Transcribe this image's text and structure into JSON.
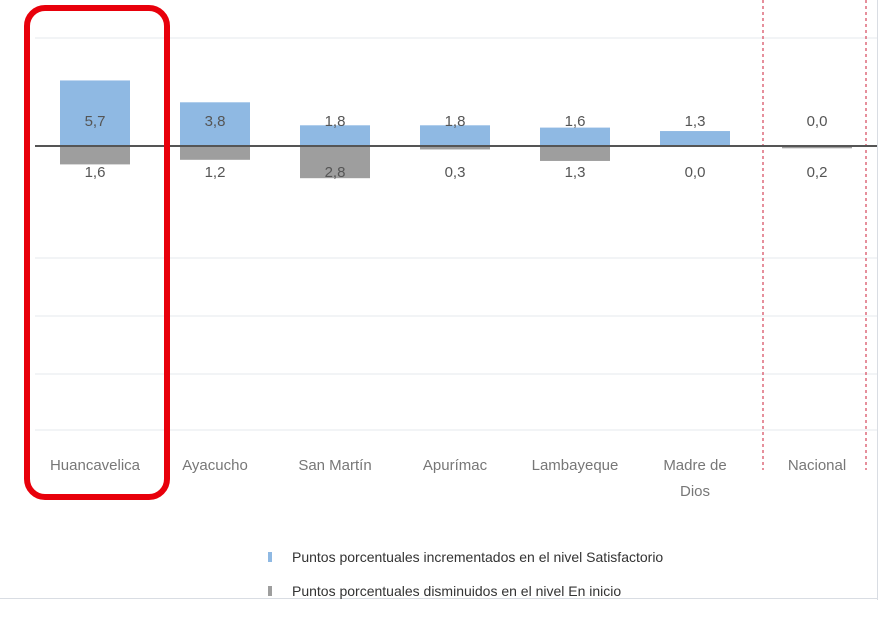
{
  "chart_data": {
    "type": "bar",
    "categories": [
      "Huancavelica",
      "Ayacucho",
      "San Martín",
      "Apurímac",
      "Lambayeque",
      "Madre de Dios",
      "Nacional"
    ],
    "series": [
      {
        "name": "Puntos porcentuales incrementados en el nivel Satisfactorio",
        "values": [
          5.7,
          3.8,
          1.8,
          1.8,
          1.6,
          1.3,
          0.0
        ],
        "labels": [
          "5,7",
          "3,8",
          "1,8",
          "1,8",
          "1,6",
          "1,3",
          "0,0"
        ],
        "color": "#8fb9e3",
        "direction": "up"
      },
      {
        "name": "Puntos porcentuales disminuidos en el nivel En inicio",
        "values": [
          1.6,
          1.2,
          2.8,
          0.3,
          1.3,
          0.0,
          0.2
        ],
        "labels": [
          "1,6",
          "1,2",
          "2,8",
          "0,3",
          "1,3",
          "0,0",
          "0,2"
        ],
        "color": "#9e9e9e",
        "direction": "down"
      }
    ],
    "highlighted_category": "Huancavelica",
    "highlight_color": "#e8000b",
    "separator_color": "#d6455a",
    "grid": true,
    "legend_position": "bottom"
  }
}
